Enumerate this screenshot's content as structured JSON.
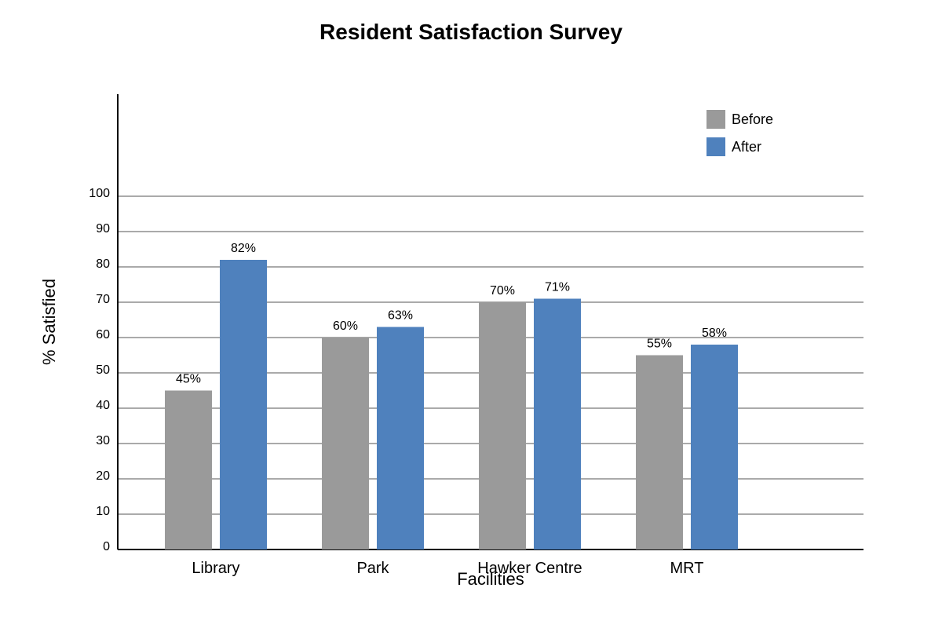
{
  "chart_data": {
    "type": "bar",
    "title": "Resident Satisfaction Survey",
    "xlabel": "Facilities",
    "ylabel": "% Satisfied",
    "categories": [
      "Library",
      "Park",
      "Hawker Centre",
      "MRT"
    ],
    "series": [
      {
        "name": "Before",
        "color": "#9a9a9a",
        "values": [
          45,
          60,
          70,
          55
        ],
        "labels": [
          "45%",
          "60%",
          "70%",
          "55%"
        ]
      },
      {
        "name": "After",
        "color": "#4f81bd",
        "values": [
          82,
          63,
          71,
          58
        ],
        "labels": [
          "82%",
          "63%",
          "71%",
          "58%"
        ]
      }
    ],
    "yticks": [
      0,
      10,
      20,
      30,
      40,
      50,
      60,
      70,
      80,
      90,
      100
    ],
    "ylim": [
      0,
      100
    ],
    "grid": true,
    "legend_position": "top-right"
  }
}
